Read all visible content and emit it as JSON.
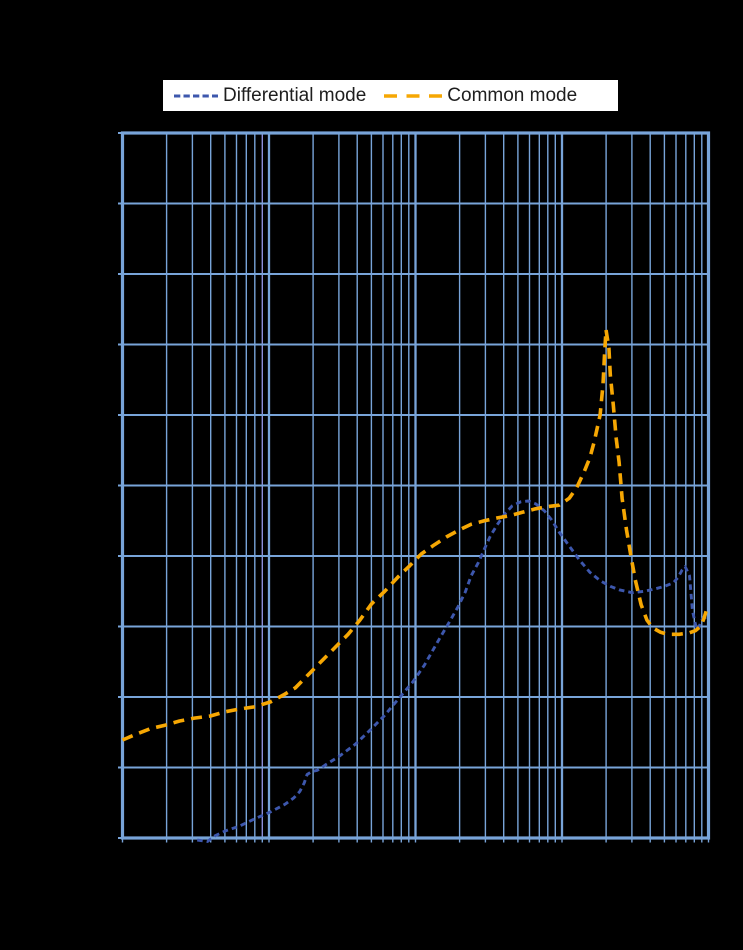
{
  "page": {
    "background": "#000000"
  },
  "legend": {
    "background": "#FFFFFF",
    "text_color": "#1E1E1E",
    "items": [
      {
        "label": "Differential mode",
        "color": "#3D57AD",
        "dash": [
          6.3,
          3.2
        ],
        "swatch_width": 44,
        "stroke_width": 3
      },
      {
        "label": "Common mode",
        "color": "#F6A703",
        "dash": [
          13,
          9.5
        ],
        "swatch_width": 58,
        "stroke_width": 3.5
      }
    ]
  },
  "chart_data": {
    "type": "line",
    "title": "",
    "legend_position": "top",
    "x_axis": {
      "scale": "log",
      "decades": 4,
      "unit": "log decades from left edge (tick labels not visible in image)",
      "tick_labels_visible": false
    },
    "y_axis": {
      "divisions": 10,
      "unit": "grid divisions from bottom edge (tick labels not visible in image)",
      "tick_labels_visible": false
    },
    "grid": {
      "on": true,
      "minor_color": "#78A4D9",
      "major_color": "#78A4D9",
      "border_color": "#78A4D9",
      "accent_minor_line": {
        "decade": 0,
        "step": 9,
        "color": "#8E8FDC"
      },
      "outside_ticks": true
    },
    "series": [
      {
        "name": "Differential mode",
        "color": "#3D57AD",
        "dash": [
          5.5,
          4
        ],
        "stroke_width": 2.9,
        "points": [
          [
            0.51,
            -0.03
          ],
          [
            0.58,
            -0.05
          ],
          [
            0.63,
            0.03
          ],
          [
            0.7,
            0.1
          ],
          [
            0.8,
            0.17
          ],
          [
            0.9,
            0.27
          ],
          [
            1.01,
            0.37
          ],
          [
            1.11,
            0.48
          ],
          [
            1.17,
            0.57
          ],
          [
            1.21,
            0.66
          ],
          [
            1.24,
            0.78
          ],
          [
            1.26,
            0.9
          ],
          [
            1.29,
            0.94
          ],
          [
            1.33,
            0.96
          ],
          [
            1.38,
            1.03
          ],
          [
            1.48,
            1.16
          ],
          [
            1.59,
            1.33
          ],
          [
            1.69,
            1.53
          ],
          [
            1.79,
            1.74
          ],
          [
            1.89,
            1.99
          ],
          [
            1.98,
            2.21
          ],
          [
            2.06,
            2.45
          ],
          [
            2.12,
            2.67
          ],
          [
            2.17,
            2.85
          ],
          [
            2.23,
            3.06
          ],
          [
            2.29,
            3.28
          ],
          [
            2.34,
            3.49
          ],
          [
            2.38,
            3.72
          ],
          [
            2.43,
            3.91
          ],
          [
            2.47,
            4.1
          ],
          [
            2.51,
            4.28
          ],
          [
            2.56,
            4.45
          ],
          [
            2.61,
            4.6
          ],
          [
            2.66,
            4.71
          ],
          [
            2.72,
            4.77
          ],
          [
            2.77,
            4.78
          ],
          [
            2.82,
            4.74
          ],
          [
            2.88,
            4.64
          ],
          [
            2.93,
            4.51
          ],
          [
            2.98,
            4.34
          ],
          [
            3.05,
            4.14
          ],
          [
            3.12,
            3.94
          ],
          [
            3.19,
            3.77
          ],
          [
            3.26,
            3.65
          ],
          [
            3.33,
            3.57
          ],
          [
            3.39,
            3.52
          ],
          [
            3.48,
            3.48
          ],
          [
            3.56,
            3.5
          ],
          [
            3.63,
            3.53
          ],
          [
            3.7,
            3.57
          ],
          [
            3.76,
            3.62
          ],
          [
            3.79,
            3.69
          ],
          [
            3.82,
            3.8
          ],
          [
            3.84,
            3.85
          ],
          [
            3.87,
            3.72
          ],
          [
            3.88,
            3.49
          ],
          [
            3.89,
            3.23
          ],
          [
            3.91,
            3.04
          ],
          [
            3.92,
            2.95
          ],
          [
            3.94,
            3.02
          ],
          [
            3.96,
            3.11
          ],
          [
            3.98,
            3.13
          ],
          [
            3.99,
            3.15
          ]
        ]
      },
      {
        "name": "Common mode",
        "color": "#F6A703",
        "dash": [
          11,
          7
        ],
        "stroke_width": 3.6,
        "points": [
          [
            0.0,
            1.39
          ],
          [
            0.09,
            1.47
          ],
          [
            0.19,
            1.55
          ],
          [
            0.29,
            1.6
          ],
          [
            0.39,
            1.66
          ],
          [
            0.49,
            1.7
          ],
          [
            0.6,
            1.73
          ],
          [
            0.7,
            1.79
          ],
          [
            0.8,
            1.83
          ],
          [
            0.9,
            1.86
          ],
          [
            1.01,
            1.93
          ],
          [
            1.1,
            2.03
          ],
          [
            1.18,
            2.13
          ],
          [
            1.28,
            2.34
          ],
          [
            1.36,
            2.51
          ],
          [
            1.45,
            2.7
          ],
          [
            1.54,
            2.89
          ],
          [
            1.62,
            3.09
          ],
          [
            1.7,
            3.32
          ],
          [
            1.79,
            3.5
          ],
          [
            1.88,
            3.7
          ],
          [
            1.96,
            3.86
          ],
          [
            2.04,
            4.03
          ],
          [
            2.13,
            4.16
          ],
          [
            2.21,
            4.27
          ],
          [
            2.3,
            4.37
          ],
          [
            2.38,
            4.45
          ],
          [
            2.47,
            4.5
          ],
          [
            2.56,
            4.54
          ],
          [
            2.64,
            4.57
          ],
          [
            2.73,
            4.62
          ],
          [
            2.82,
            4.67
          ],
          [
            2.9,
            4.7
          ],
          [
            2.98,
            4.72
          ],
          [
            3.05,
            4.82
          ],
          [
            3.1,
            4.97
          ],
          [
            3.15,
            5.19
          ],
          [
            3.19,
            5.39
          ],
          [
            3.22,
            5.62
          ],
          [
            3.26,
            6.0
          ],
          [
            3.28,
            6.43
          ],
          [
            3.29,
            6.85
          ],
          [
            3.3,
            7.21
          ],
          [
            3.32,
            6.95
          ],
          [
            3.33,
            6.57
          ],
          [
            3.35,
            6.14
          ],
          [
            3.37,
            5.67
          ],
          [
            3.39,
            5.33
          ],
          [
            3.41,
            4.82
          ],
          [
            3.44,
            4.37
          ],
          [
            3.47,
            4.0
          ],
          [
            3.5,
            3.66
          ],
          [
            3.54,
            3.31
          ],
          [
            3.58,
            3.09
          ],
          [
            3.62,
            2.98
          ],
          [
            3.67,
            2.92
          ],
          [
            3.72,
            2.89
          ],
          [
            3.8,
            2.89
          ],
          [
            3.87,
            2.91
          ],
          [
            3.91,
            2.94
          ],
          [
            3.95,
            3.01
          ],
          [
            3.97,
            3.12
          ],
          [
            3.99,
            3.26
          ]
        ]
      }
    ]
  }
}
